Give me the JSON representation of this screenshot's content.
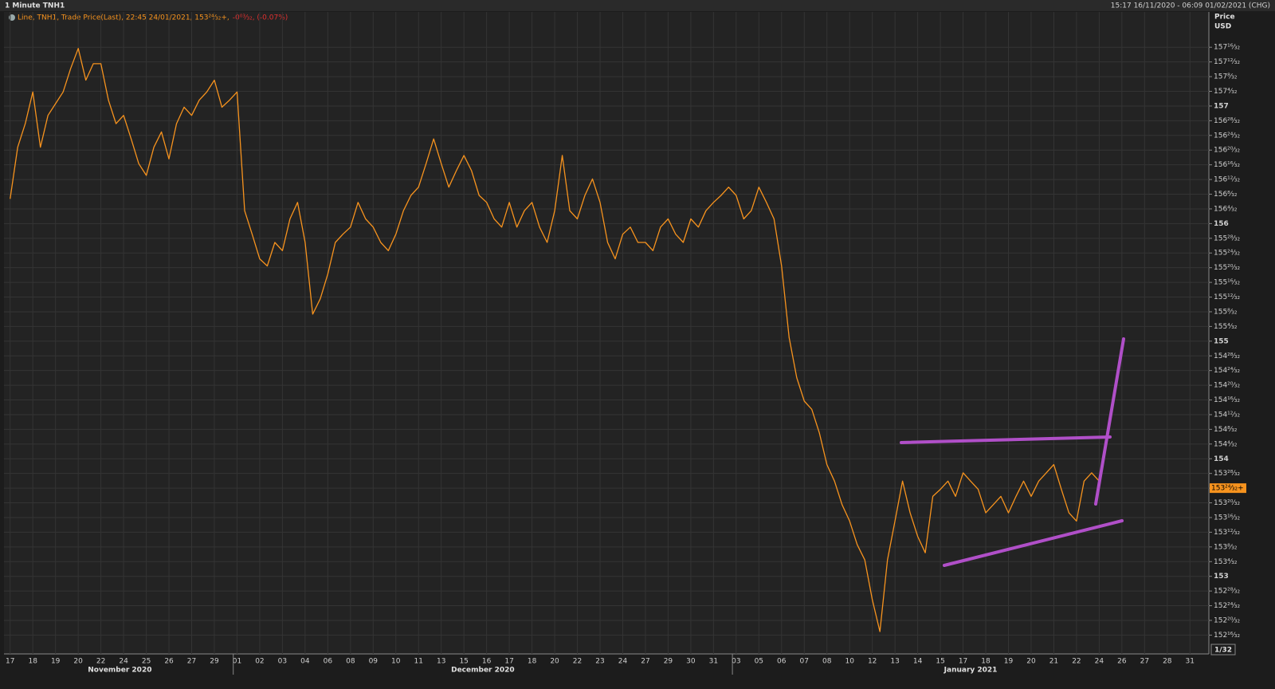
{
  "chart_data": {
    "type": "line",
    "title": "1 Minute TNH1",
    "time_range": "15:17 16/11/2020 - 06:09 01/02/2021 (CHG)",
    "legend_text": "Line, TNH1, Trade Price(Last), 22:45 24/01/2021, 153²⁴⁄₃₂+,",
    "legend_change": "-0⁰³⁄₃₂, (-0.07%)",
    "y_axis_title": "Price",
    "y_axis_unit": "USD",
    "tick_size": "1/32",
    "months": [
      "November 2020",
      "December 2020",
      "January 2021"
    ],
    "last_price": {
      "value": 153.75,
      "label": "153²⁴⁄₃₂+"
    },
    "categories": [
      "17",
      null,
      null,
      "18",
      null,
      null,
      "19",
      null,
      null,
      "20",
      null,
      null,
      "22",
      null,
      null,
      "24",
      null,
      null,
      "25",
      null,
      null,
      "26",
      null,
      null,
      "27",
      null,
      null,
      "29",
      null,
      null,
      "01",
      null,
      null,
      "02",
      null,
      null,
      "03",
      null,
      null,
      "04",
      null,
      null,
      "06",
      null,
      null,
      "08",
      null,
      null,
      "09",
      null,
      null,
      "10",
      null,
      null,
      "11",
      null,
      null,
      "13",
      null,
      null,
      "15",
      null,
      null,
      "16",
      null,
      null,
      "17",
      null,
      null,
      "18",
      null,
      null,
      "20",
      null,
      null,
      "22",
      null,
      null,
      "23",
      null,
      null,
      "24",
      null,
      null,
      "27",
      null,
      null,
      "29",
      null,
      null,
      "30",
      null,
      null,
      "31",
      null,
      null,
      "03",
      null,
      null,
      "05",
      null,
      null,
      "06",
      null,
      null,
      "07",
      null,
      null,
      "08",
      null,
      null,
      "10",
      null,
      null,
      "12",
      null,
      null,
      "13",
      null,
      null,
      "14",
      null,
      null,
      "15",
      null,
      null,
      "17",
      null,
      null,
      "18",
      null,
      null,
      "19",
      null,
      null,
      "20",
      null,
      null,
      "21",
      null,
      null,
      "22",
      null,
      null,
      "24",
      null,
      null,
      "26",
      null,
      null,
      "27",
      null,
      null,
      "28",
      null,
      null,
      "31",
      null,
      null
    ],
    "series": [
      {
        "name": "TNH1",
        "color": "#f7931e",
        "values": [
          156.21,
          156.65,
          156.85,
          157.12,
          156.65,
          156.92,
          157.02,
          157.12,
          157.32,
          157.49,
          157.22,
          157.36,
          157.36,
          157.05,
          156.85,
          156.92,
          156.72,
          156.51,
          156.41,
          156.65,
          156.78,
          156.55,
          156.85,
          156.99,
          156.92,
          157.05,
          157.12,
          157.22,
          156.99,
          157.05,
          157.12,
          156.11,
          155.91,
          155.7,
          155.64,
          155.84,
          155.77,
          156.04,
          156.18,
          155.84,
          155.23,
          155.36,
          155.57,
          155.84,
          155.91,
          155.97,
          156.18,
          156.04,
          155.97,
          155.84,
          155.77,
          155.91,
          156.11,
          156.24,
          156.31,
          156.51,
          156.72,
          156.51,
          156.31,
          156.45,
          156.58,
          156.45,
          156.24,
          156.18,
          156.04,
          155.97,
          156.18,
          155.97,
          156.11,
          156.18,
          155.97,
          155.84,
          156.11,
          156.58,
          156.11,
          156.04,
          156.24,
          156.38,
          156.18,
          155.84,
          155.7,
          155.91,
          155.97,
          155.84,
          155.84,
          155.77,
          155.97,
          156.04,
          155.91,
          155.84,
          156.04,
          155.97,
          156.11,
          156.18,
          156.24,
          156.31,
          156.24,
          156.04,
          156.11,
          156.31,
          156.18,
          156.04,
          155.64,
          155.03,
          154.69,
          154.49,
          154.42,
          154.22,
          153.95,
          153.81,
          153.61,
          153.47,
          153.27,
          153.14,
          152.8,
          152.53,
          153.14,
          153.47,
          153.81,
          153.54,
          153.34,
          153.2,
          153.68,
          153.74,
          153.81,
          153.68,
          153.88,
          153.81,
          153.74,
          153.54,
          153.61,
          153.68,
          153.54,
          153.68,
          153.81,
          153.68,
          153.81,
          153.88,
          153.95,
          153.74,
          153.54,
          153.47,
          153.81,
          153.88,
          153.81,
          null,
          null,
          null,
          null,
          null,
          null,
          null,
          null,
          null,
          null,
          null,
          null,
          null,
          null
        ]
      }
    ],
    "ylim": [
      152.34,
      157.8
    ],
    "yticks": [
      {
        "value": 152.5,
        "label": "152¹⁶⁄₃₂"
      },
      {
        "value": 152.625,
        "label": "152²⁰⁄₃₂"
      },
      {
        "value": 152.75,
        "label": "152²⁴⁄₃₂"
      },
      {
        "value": 152.875,
        "label": "152²⁸⁄₃₂"
      },
      153,
      {
        "value": 153.125,
        "label": "153⁴⁄₃₂"
      },
      {
        "value": 153.25,
        "label": "153⁸⁄₃₂"
      },
      {
        "value": 153.375,
        "label": "153¹²⁄₃₂"
      },
      {
        "value": 153.5,
        "label": "153¹⁶⁄₃₂"
      },
      {
        "value": 153.625,
        "label": "153²⁰⁄₃₂"
      },
      {
        "value": 153.75,
        "label": "153²⁴⁄₃₂"
      },
      {
        "value": 153.875,
        "label": "153²⁸⁄₃₂"
      },
      154,
      {
        "value": 154.125,
        "label": "154⁴⁄₃₂"
      },
      {
        "value": 154.25,
        "label": "154⁸⁄₃₂"
      },
      {
        "value": 154.375,
        "label": "154¹²⁄₃₂"
      },
      {
        "value": 154.5,
        "label": "154¹⁶⁄₃₂"
      },
      {
        "value": 154.625,
        "label": "154²⁰⁄₃₂"
      },
      {
        "value": 154.75,
        "label": "154²⁴⁄₃₂"
      },
      {
        "value": 154.875,
        "label": "154²⁸⁄₃₂"
      },
      155,
      {
        "value": 155.125,
        "label": "155⁴⁄₃₂"
      },
      {
        "value": 155.25,
        "label": "155⁸⁄₃₂"
      },
      {
        "value": 155.375,
        "label": "155¹²⁄₃₂"
      },
      {
        "value": 155.5,
        "label": "155¹⁶⁄₃₂"
      },
      {
        "value": 155.625,
        "label": "155²⁰⁄₃₂"
      },
      {
        "value": 155.75,
        "label": "155²⁴⁄₃₂"
      },
      {
        "value": 155.875,
        "label": "155²⁸⁄₃₂"
      },
      156,
      {
        "value": 156.125,
        "label": "156⁴⁄₃₂"
      },
      {
        "value": 156.25,
        "label": "156⁸⁄₃₂"
      },
      {
        "value": 156.375,
        "label": "156¹²⁄₃₂"
      },
      {
        "value": 156.5,
        "label": "156¹⁶⁄₃₂"
      },
      {
        "value": 156.625,
        "label": "156²⁰⁄₃₂"
      },
      {
        "value": 156.75,
        "label": "156²⁴⁄₃₂"
      },
      {
        "value": 156.875,
        "label": "156²⁸⁄₃₂"
      },
      157,
      {
        "value": 157.125,
        "label": "157⁴⁄₃₂"
      },
      {
        "value": 157.25,
        "label": "157⁸⁄₃₂"
      },
      {
        "value": 157.375,
        "label": "157¹²⁄₃₂"
      },
      {
        "value": 157.5,
        "label": "157¹⁶⁄₃₂"
      }
    ],
    "grid": true
  }
}
